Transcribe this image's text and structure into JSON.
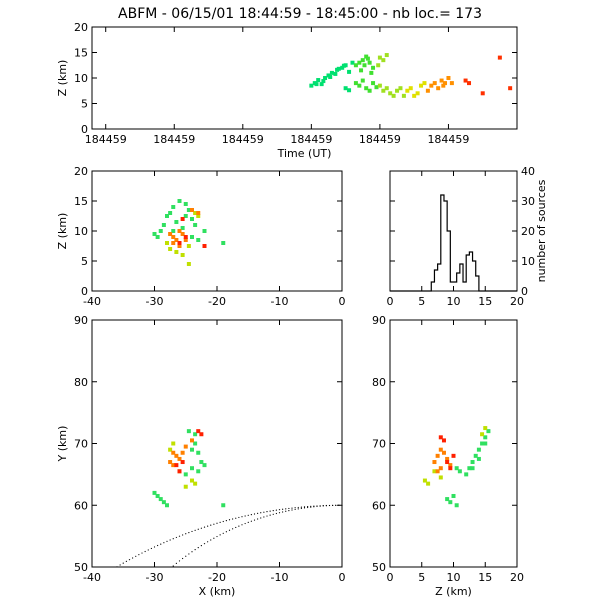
{
  "title": "ABFM - 06/15/01 18:44:59 - 18:45:00 - nb loc.=     173",
  "panels": {
    "time_height": {
      "type": "scatter",
      "xlabel": "Time (UT)",
      "ylabel": "Z (km)",
      "x_tick_labels": [
        "184459",
        "184459",
        "184459",
        "184459",
        "184459",
        "184459"
      ],
      "ylim": [
        0,
        20
      ],
      "y_ticks": [
        0,
        5,
        10,
        15,
        20
      ]
    },
    "xz": {
      "type": "scatter",
      "ylabel": "Z (km)",
      "xlim": [
        -40,
        0
      ],
      "ylim": [
        0,
        20
      ],
      "x_ticks": [
        -40,
        -30,
        -20,
        -10,
        0
      ],
      "y_ticks": [
        0,
        5,
        10,
        15,
        20
      ]
    },
    "histogram": {
      "type": "line",
      "ylabel": "number of sources",
      "xlim": [
        0,
        20
      ],
      "ylim": [
        0,
        40
      ],
      "x_ticks": [
        0,
        5,
        10,
        15,
        20
      ],
      "y_ticks": [
        0,
        10,
        20,
        30,
        40
      ],
      "bin_width_km": 0.5,
      "bin_start_km": 0,
      "counts": [
        0,
        0,
        0,
        0,
        0,
        0,
        0,
        0,
        0,
        0,
        0,
        0,
        0,
        3,
        7,
        9,
        32,
        30,
        20,
        3,
        3,
        6,
        9,
        3,
        12,
        13,
        10,
        5,
        0,
        0,
        0,
        0,
        0,
        0,
        0,
        0,
        0,
        0,
        0,
        0
      ]
    },
    "xy": {
      "type": "scatter",
      "xlabel": "X (km)",
      "ylabel": "Y (km)",
      "xlim": [
        -40,
        0
      ],
      "ylim": [
        50,
        90
      ],
      "x_ticks": [
        -40,
        -30,
        -20,
        -10,
        0
      ],
      "y_ticks": [
        50,
        60,
        70,
        80,
        90
      ]
    },
    "zy": {
      "type": "scatter",
      "xlabel": "Z (km)",
      "xlim": [
        0,
        20
      ],
      "ylim": [
        50,
        90
      ],
      "x_ticks": [
        0,
        5,
        10,
        15,
        20
      ],
      "y_ticks": [
        50,
        60,
        70,
        80,
        90
      ]
    }
  },
  "chart_data": [
    {
      "type": "scatter",
      "title": "ABFM - 06/15/01 18:44:59 - 18:45:00 - nb loc.=     173",
      "xlabel": "Time (UT)",
      "ylabel": "Z (km)",
      "ylim": [
        0,
        20
      ],
      "series": [
        {
          "color": "#00e070",
          "points": [
            [
              0.6,
              8.5
            ],
            [
              0.61,
              9.0
            ],
            [
              0.62,
              9.6
            ],
            [
              0.63,
              8.8
            ],
            [
              0.64,
              10.0
            ],
            [
              0.65,
              10.5
            ],
            [
              0.66,
              11.0
            ],
            [
              0.67,
              10.8
            ],
            [
              0.68,
              11.8
            ],
            [
              0.69,
              12.0
            ],
            [
              0.7,
              12.5
            ],
            [
              0.71,
              11.2
            ],
            [
              0.72,
              13.0
            ],
            [
              0.615,
              8.8
            ],
            [
              0.635,
              9.4
            ],
            [
              0.655,
              10.2
            ],
            [
              0.675,
              11.6
            ],
            [
              0.695,
              12.4
            ],
            [
              0.7,
              8.0
            ],
            [
              0.71,
              7.6
            ]
          ]
        },
        {
          "color": "#40e030",
          "points": [
            [
              0.73,
              12.5
            ],
            [
              0.74,
              13.0
            ],
            [
              0.75,
              13.5
            ],
            [
              0.76,
              14.2
            ],
            [
              0.77,
              13.0
            ],
            [
              0.78,
              12.0
            ],
            [
              0.745,
              11.5
            ],
            [
              0.755,
              12.5
            ],
            [
              0.765,
              13.8
            ],
            [
              0.775,
              11.0
            ],
            [
              0.73,
              9.0
            ],
            [
              0.74,
              8.5
            ],
            [
              0.75,
              9.5
            ],
            [
              0.76,
              8.0
            ],
            [
              0.77,
              7.5
            ],
            [
              0.78,
              9.0
            ],
            [
              0.79,
              8.2
            ]
          ]
        },
        {
          "color": "#a0e020",
          "points": [
            [
              0.8,
              14.0
            ],
            [
              0.81,
              13.5
            ],
            [
              0.82,
              14.5
            ],
            [
              0.795,
              12.5
            ],
            [
              0.8,
              8.5
            ],
            [
              0.81,
              7.5
            ],
            [
              0.82,
              8.0
            ],
            [
              0.83,
              7.0
            ],
            [
              0.84,
              6.5
            ],
            [
              0.85,
              7.5
            ],
            [
              0.86,
              8.0
            ],
            [
              0.87,
              6.5
            ]
          ]
        },
        {
          "color": "#e0e000",
          "points": [
            [
              0.88,
              7.5
            ],
            [
              0.89,
              8.0
            ],
            [
              0.9,
              6.5
            ],
            [
              0.91,
              7.0
            ],
            [
              0.92,
              8.5
            ],
            [
              0.93,
              9.0
            ]
          ]
        },
        {
          "color": "#ff9000",
          "points": [
            [
              0.94,
              7.5
            ],
            [
              0.95,
              8.5
            ],
            [
              0.96,
              9.0
            ],
            [
              0.97,
              8.0
            ],
            [
              0.98,
              9.5
            ],
            [
              0.99,
              9.0
            ],
            [
              1.0,
              10.0
            ],
            [
              1.01,
              9.0
            ],
            [
              0.985,
              8.5
            ]
          ]
        },
        {
          "color": "#ff3000",
          "points": [
            [
              1.05,
              9.5
            ],
            [
              1.06,
              9.0
            ],
            [
              1.1,
              7.0
            ],
            [
              1.15,
              14.0
            ],
            [
              1.18,
              8.0
            ]
          ]
        }
      ]
    },
    {
      "type": "scatter",
      "ylabel": "Z (km)",
      "xlim": [
        -40,
        0
      ],
      "ylim": [
        0,
        20
      ],
      "series": [
        {
          "color": "#30e060",
          "points": [
            [
              -30,
              9.5
            ],
            [
              -29.5,
              9.0
            ],
            [
              -29,
              10.0
            ],
            [
              -28.5,
              11.0
            ],
            [
              -28,
              12.5
            ],
            [
              -27.5,
              13.0
            ],
            [
              -27,
              14.0
            ],
            [
              -26,
              15.0
            ],
            [
              -25,
              14.5
            ],
            [
              -24.5,
              13.5
            ],
            [
              -24,
              12.0
            ],
            [
              -23.5,
              11.0
            ],
            [
              -25.5,
              10.5
            ],
            [
              -26.5,
              11.5
            ],
            [
              -24,
              9.0
            ],
            [
              -23,
              8.5
            ],
            [
              -22,
              10.0
            ],
            [
              -19,
              8.0
            ],
            [
              -25,
              12.5
            ],
            [
              -27,
              10.0
            ]
          ]
        },
        {
          "color": "#c0e000",
          "points": [
            [
              -28,
              8.0
            ],
            [
              -27.5,
              7.0
            ],
            [
              -26.5,
              6.5
            ],
            [
              -25.5,
              6.0
            ],
            [
              -24.5,
              7.5
            ],
            [
              -23.5,
              13.0
            ],
            [
              -23,
              12.5
            ],
            [
              -24.5,
              4.5
            ]
          ]
        },
        {
          "color": "#ff8000",
          "points": [
            [
              -27.5,
              9.5
            ],
            [
              -27,
              9.0
            ],
            [
              -26.5,
              8.5
            ],
            [
              -26,
              10.0
            ],
            [
              -25.5,
              9.5
            ],
            [
              -27,
              8.0
            ],
            [
              -26,
              7.5
            ],
            [
              -25,
              8.5
            ],
            [
              -24,
              13.5
            ],
            [
              -23,
              13.0
            ]
          ]
        },
        {
          "color": "#ff2000",
          "points": [
            [
              -26,
              8.0
            ],
            [
              -25,
              9.0
            ],
            [
              -22,
              7.5
            ],
            [
              -25.5,
              12.0
            ]
          ]
        }
      ]
    },
    {
      "type": "line",
      "ylabel": "number of sources",
      "xlim": [
        0,
        20
      ],
      "ylim": [
        0,
        40
      ],
      "x": [
        0,
        0.5,
        1,
        1.5,
        2,
        2.5,
        3,
        3.5,
        4,
        4.5,
        5,
        5.5,
        6,
        6.5,
        7,
        7.5,
        8,
        8.5,
        9,
        9.5,
        10,
        10.5,
        11,
        11.5,
        12,
        12.5,
        13,
        13.5,
        14,
        14.5,
        15,
        15.5,
        16,
        16.5,
        17,
        17.5,
        18,
        18.5,
        19,
        19.5
      ],
      "series": [
        {
          "values": [
            0,
            0,
            0,
            0,
            0,
            0,
            0,
            0,
            0,
            0,
            0,
            0,
            0,
            3,
            7,
            9,
            32,
            30,
            20,
            3,
            3,
            6,
            9,
            3,
            12,
            13,
            10,
            5,
            0,
            0,
            0,
            0,
            0,
            0,
            0,
            0,
            0,
            0,
            0,
            0
          ]
        }
      ]
    },
    {
      "type": "scatter",
      "xlabel": "X (km)",
      "ylabel": "Y (km)",
      "xlim": [
        -40,
        0
      ],
      "ylim": [
        50,
        90
      ],
      "series": [
        {
          "color": "#30e060",
          "points": [
            [
              -30,
              62.0
            ],
            [
              -29.5,
              61.5
            ],
            [
              -29,
              61.0
            ],
            [
              -28.5,
              60.5
            ],
            [
              -28,
              60.0
            ],
            [
              -24,
              69.0
            ],
            [
              -23.5,
              70.0
            ],
            [
              -23,
              68.5
            ],
            [
              -22.5,
              67.0
            ],
            [
              -22,
              66.5
            ],
            [
              -23,
              65.5
            ],
            [
              -24.5,
              72.0
            ],
            [
              -23.5,
              71.5
            ],
            [
              -19,
              60.0
            ],
            [
              -24,
              66.0
            ],
            [
              -25,
              65.0
            ]
          ]
        },
        {
          "color": "#c0e000",
          "points": [
            [
              -27.5,
              69.0
            ],
            [
              -27,
              70.0
            ],
            [
              -24,
              64.0
            ],
            [
              -23.5,
              63.5
            ],
            [
              -25,
              63.0
            ],
            [
              -26,
              65.5
            ]
          ]
        },
        {
          "color": "#ff8000",
          "points": [
            [
              -27.5,
              67.0
            ],
            [
              -27,
              66.5
            ],
            [
              -26.5,
              68.0
            ],
            [
              -26,
              67.5
            ],
            [
              -25.5,
              68.5
            ],
            [
              -27,
              68.5
            ],
            [
              -25,
              69.5
            ],
            [
              -24,
              70.5
            ]
          ]
        },
        {
          "color": "#ff2000",
          "points": [
            [
              -26.5,
              66.5
            ],
            [
              -26,
              65.5
            ],
            [
              -25.5,
              67.0
            ],
            [
              -23,
              72.0
            ],
            [
              -22.5,
              71.5
            ]
          ]
        }
      ]
    },
    {
      "type": "scatter",
      "xlabel": "Z (km)",
      "xlim": [
        0,
        20
      ],
      "ylim": [
        50,
        90
      ],
      "series": [
        {
          "color": "#30e060",
          "points": [
            [
              9.0,
              61.0
            ],
            [
              9.5,
              60.5
            ],
            [
              10.0,
              61.5
            ],
            [
              10.5,
              60.0
            ],
            [
              12,
              65.0
            ],
            [
              12.5,
              66.0
            ],
            [
              13,
              67.0
            ],
            [
              13.5,
              68.0
            ],
            [
              14,
              69.0
            ],
            [
              14.5,
              70.0
            ],
            [
              15,
              71.0
            ],
            [
              15.5,
              72.0
            ],
            [
              15,
              70.0
            ],
            [
              14,
              67.5
            ],
            [
              13,
              66.0
            ],
            [
              11,
              65.5
            ],
            [
              10.5,
              66.0
            ]
          ]
        },
        {
          "color": "#c0e000",
          "points": [
            [
              5.5,
              64.0
            ],
            [
              6,
              63.5
            ],
            [
              7,
              65.5
            ],
            [
              8,
              64.5
            ],
            [
              15,
              72.5
            ],
            [
              14.5,
              71.5
            ]
          ]
        },
        {
          "color": "#ff8000",
          "points": [
            [
              7,
              67.0
            ],
            [
              7.5,
              68.0
            ],
            [
              8,
              69.0
            ],
            [
              8.5,
              68.5
            ],
            [
              9,
              67.5
            ],
            [
              9.5,
              66.5
            ],
            [
              8,
              66.0
            ],
            [
              7.5,
              65.5
            ]
          ]
        },
        {
          "color": "#ff2000",
          "points": [
            [
              8,
              71.0
            ],
            [
              8.5,
              70.5
            ],
            [
              9,
              67.0
            ],
            [
              9.5,
              66.0
            ],
            [
              10,
              68.0
            ]
          ]
        }
      ]
    }
  ]
}
